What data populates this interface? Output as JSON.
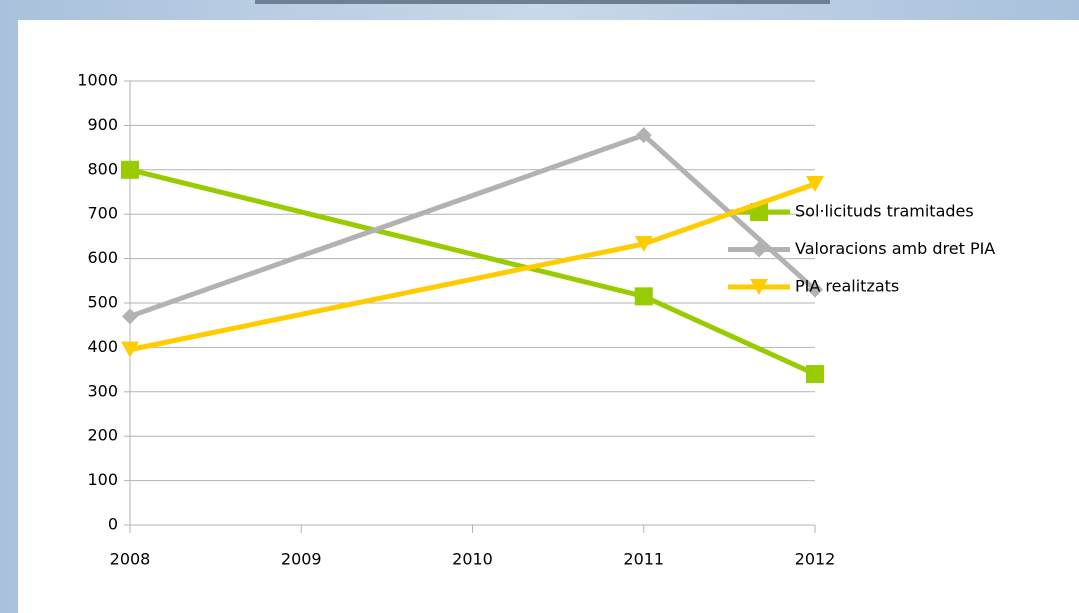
{
  "chart_data": {
    "type": "line",
    "x": [
      2008,
      2011,
      2012
    ],
    "xlim": [
      2008,
      2012
    ],
    "xticks": [
      2008,
      2009,
      2010,
      2011,
      2012
    ],
    "ylim": [
      0,
      1000
    ],
    "yticks": [
      0,
      100,
      200,
      300,
      400,
      500,
      600,
      700,
      800,
      900,
      1000
    ],
    "grid": true,
    "legend": "right",
    "series": [
      {
        "name": "Sol·licituds tramitades",
        "color": "#99cc00",
        "marker": "square",
        "values": [
          800,
          515,
          340
        ]
      },
      {
        "name": "Valoracions amb dret PIA",
        "color": "#b2b2b2",
        "marker": "diamond",
        "values": [
          470,
          878,
          530
        ]
      },
      {
        "name": "PIA realitzats",
        "color": "#ffcc00",
        "marker": "triangle-down",
        "values": [
          395,
          633,
          768
        ]
      }
    ]
  }
}
